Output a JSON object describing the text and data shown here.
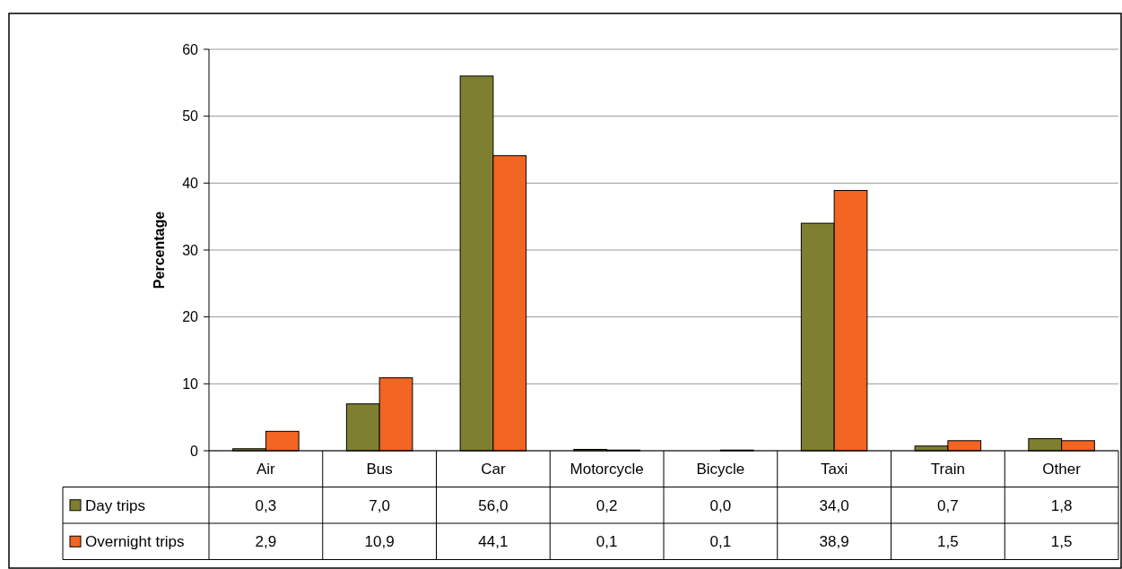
{
  "chart_data": {
    "type": "bar",
    "ylabel": "Percentage",
    "categories": [
      "Air",
      "Bus",
      "Car",
      "Motorcycle",
      "Bicycle",
      "Taxi",
      "Train",
      "Other"
    ],
    "series": [
      {
        "name": "Day trips",
        "color": "#7f7f32",
        "values": [
          0.3,
          7.0,
          56.0,
          0.2,
          0.0,
          34.0,
          0.7,
          1.8
        ],
        "value_labels": [
          "0,3",
          "7,0",
          "56,0",
          "0,2",
          "0,0",
          "34,0",
          "0,7",
          "1,8"
        ]
      },
      {
        "name": "Overnight trips",
        "color": "#f26522",
        "values": [
          2.9,
          10.9,
          44.1,
          0.1,
          0.1,
          38.9,
          1.5,
          1.5
        ],
        "value_labels": [
          "2,9",
          "10,9",
          "44,1",
          "0,1",
          "0,1",
          "38,9",
          "1,5",
          "1,5"
        ]
      }
    ],
    "ylim": [
      0,
      60
    ],
    "yticks": [
      0,
      10,
      20,
      30,
      40,
      50,
      60
    ],
    "grid": "y",
    "legend": "bottom"
  }
}
